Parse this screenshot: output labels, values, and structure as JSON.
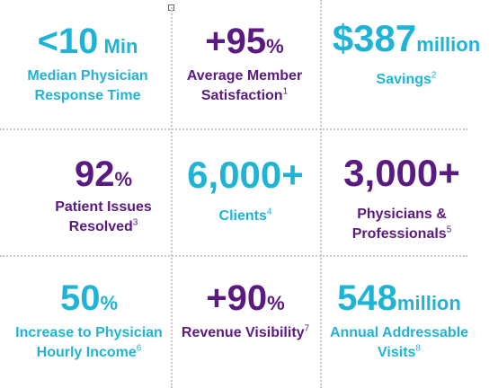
{
  "stats": [
    {
      "value": "<10",
      "unit": "Min",
      "label_line1": "Median Physician",
      "label_line2": "Response Time",
      "footnote": ""
    },
    {
      "value": "+95",
      "unit": "%",
      "label_line1": "Average Member",
      "label_line2": "Satisfaction",
      "footnote": "1"
    },
    {
      "value": "$387",
      "unit": "million",
      "label_line1": "Savings",
      "label_line2": "",
      "footnote": "2"
    },
    {
      "value": "92",
      "unit": "%",
      "label_line1": "Patient Issues",
      "label_line2": "Resolved",
      "footnote": "3"
    },
    {
      "value": "6,000+",
      "unit": "",
      "label_line1": "Clients",
      "label_line2": "",
      "footnote": "4"
    },
    {
      "value": "3,000+",
      "unit": "",
      "label_line1": "Physicians &",
      "label_line2": "Professionals",
      "footnote": "5"
    },
    {
      "value": "50",
      "unit": "%",
      "label_line1": "Increase to Physician",
      "label_line2": "Hourly Income",
      "footnote": "6"
    },
    {
      "value": "+90",
      "unit": "%",
      "label_line1": "Revenue Visibility",
      "label_line2": "",
      "footnote": "7"
    },
    {
      "value": "548",
      "unit": "million",
      "label_line1": "Annual Addressable",
      "label_line2": "Visits",
      "footnote": "8"
    }
  ],
  "colors": {
    "teal": "#1fb4d6",
    "purple": "#5a1a82",
    "divider": "#c8c8c8"
  }
}
